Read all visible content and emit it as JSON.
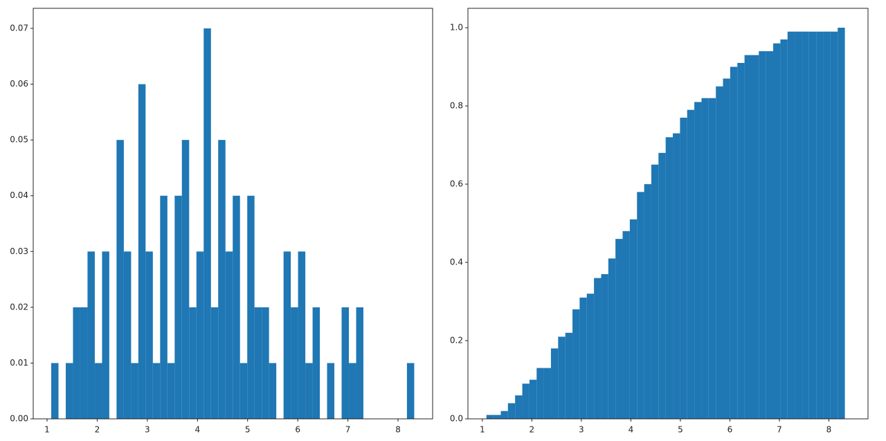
{
  "chart_data": [
    {
      "type": "histogram",
      "bins": [
        1.083,
        1.228,
        1.373,
        1.517,
        1.662,
        1.807,
        1.952,
        2.097,
        2.241,
        2.386,
        2.531,
        2.676,
        2.821,
        2.965,
        3.11,
        3.255,
        3.4,
        3.545,
        3.689,
        3.834,
        3.979,
        4.124,
        4.269,
        4.413,
        4.558,
        4.703,
        4.848,
        4.993,
        5.137,
        5.282,
        5.427,
        5.572,
        5.717,
        5.861,
        6.006,
        6.151,
        6.296,
        6.441,
        6.585,
        6.73,
        6.875,
        7.02,
        7.165,
        7.309,
        7.454,
        7.599,
        7.744,
        7.889,
        8.033,
        8.178,
        8.323
      ],
      "values": [
        0.01,
        0,
        0.01,
        0.02,
        0.02,
        0.03,
        0.01,
        0.03,
        0,
        0.05,
        0.03,
        0.01,
        0.06,
        0.03,
        0.01,
        0.04,
        0.01,
        0.04,
        0.05,
        0.02,
        0.03,
        0.07,
        0.02,
        0.05,
        0.03,
        0.04,
        0.01,
        0.04,
        0.02,
        0.02,
        0.01,
        0,
        0.03,
        0.02,
        0.03,
        0.01,
        0.02,
        0,
        0.01,
        0,
        0.02,
        0.01,
        0.02,
        0,
        0,
        0,
        0,
        0,
        0,
        0.01
      ],
      "color": "#1f77b4",
      "xlim": [
        0.724,
        8.69
      ],
      "xticks": [
        1,
        2,
        3,
        4,
        5,
        6,
        7,
        8
      ],
      "ylim": [
        0,
        0.0736
      ],
      "yticks": [
        {
          "value": 0,
          "label": "0.00"
        },
        {
          "value": 0.01,
          "label": "0.01"
        },
        {
          "value": 0.02,
          "label": "0.02"
        },
        {
          "value": 0.03,
          "label": "0.03"
        },
        {
          "value": 0.04,
          "label": "0.04"
        },
        {
          "value": 0.05,
          "label": "0.05"
        },
        {
          "value": 0.06,
          "label": "0.06"
        },
        {
          "value": 0.07,
          "label": "0.07"
        }
      ]
    },
    {
      "type": "histogram",
      "bins": [
        1.083,
        1.228,
        1.373,
        1.517,
        1.662,
        1.807,
        1.952,
        2.097,
        2.241,
        2.386,
        2.531,
        2.676,
        2.821,
        2.965,
        3.11,
        3.255,
        3.4,
        3.545,
        3.689,
        3.834,
        3.979,
        4.124,
        4.269,
        4.413,
        4.558,
        4.703,
        4.848,
        4.993,
        5.137,
        5.282,
        5.427,
        5.572,
        5.717,
        5.861,
        6.006,
        6.151,
        6.296,
        6.441,
        6.585,
        6.73,
        6.875,
        7.02,
        7.165,
        7.309,
        7.454,
        7.599,
        7.744,
        7.889,
        8.033,
        8.178,
        8.323
      ],
      "values": [
        0.01,
        0.01,
        0.02,
        0.04,
        0.06,
        0.09,
        0.1,
        0.13,
        0.13,
        0.18,
        0.21,
        0.22,
        0.28,
        0.31,
        0.32,
        0.36,
        0.37,
        0.41,
        0.46,
        0.48,
        0.51,
        0.58,
        0.6,
        0.65,
        0.68,
        0.72,
        0.73,
        0.77,
        0.79,
        0.81,
        0.82,
        0.82,
        0.85,
        0.87,
        0.9,
        0.91,
        0.93,
        0.93,
        0.94,
        0.94,
        0.96,
        0.97,
        0.99,
        0.99,
        0.99,
        0.99,
        0.99,
        0.99,
        0.99,
        1.0
      ],
      "color": "#1f77b4",
      "xlim": [
        0.709,
        8.79
      ],
      "xticks": [
        1,
        2,
        3,
        4,
        5,
        6,
        7,
        8
      ],
      "ylim": [
        0,
        1.0496
      ],
      "yticks": [
        {
          "value": 0,
          "label": "0.0"
        },
        {
          "value": 0.2,
          "label": "0.2"
        },
        {
          "value": 0.4,
          "label": "0.4"
        },
        {
          "value": 0.6,
          "label": "0.6"
        },
        {
          "value": 0.8,
          "label": "0.8"
        },
        {
          "value": 1.0,
          "label": "1.0"
        }
      ]
    }
  ]
}
